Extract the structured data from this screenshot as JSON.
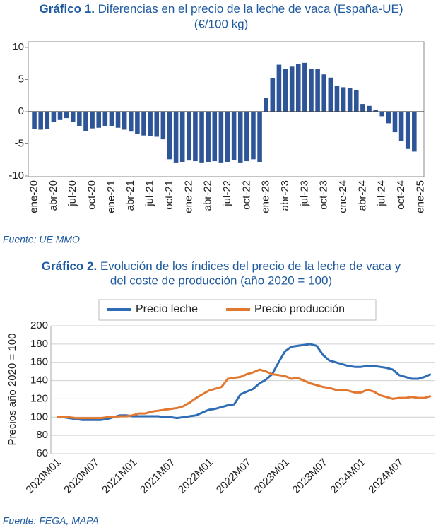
{
  "chart_data": [
    {
      "type": "bar",
      "title_prefix": "Gráfico 1.",
      "title": [
        "Diferencias en el precio de la leche de vaca (España-UE)",
        "(€/100 kg)"
      ],
      "source": "Fuente: UE MMO",
      "categories": [
        "ene-20",
        null,
        null,
        "abr-20",
        null,
        null,
        "jul-20",
        null,
        null,
        "oct-20",
        null,
        null,
        "ene-21",
        null,
        null,
        "abr-21",
        null,
        null,
        "jul-21",
        null,
        null,
        "oct-21",
        null,
        null,
        "ene-22",
        null,
        null,
        "abr-22",
        null,
        null,
        "jul-22",
        null,
        null,
        "oct-22",
        null,
        null,
        "ene-23",
        null,
        null,
        "abr-23",
        null,
        null,
        "jul-23",
        null,
        null,
        "oct-23",
        null,
        null,
        "ene-24",
        null,
        null,
        "abr-24",
        null,
        null,
        "jul-24",
        null,
        null,
        "oct-24",
        null,
        null,
        "ene-25"
      ],
      "values": [
        -2.7,
        -2.8,
        -2.7,
        -1.6,
        -1.3,
        -1.0,
        -1.6,
        -2.2,
        -3.0,
        -2.6,
        -2.5,
        -2.2,
        -2.2,
        -2.5,
        -2.8,
        -3.1,
        -3.5,
        -3.7,
        -3.8,
        -3.9,
        -4.3,
        -7.4,
        -7.9,
        -7.8,
        -7.6,
        -7.7,
        -7.9,
        -7.8,
        -7.7,
        -7.9,
        -7.8,
        -7.5,
        -7.9,
        -7.7,
        -7.4,
        -7.8,
        2.2,
        5.2,
        7.3,
        6.6,
        7.0,
        7.4,
        7.6,
        6.6,
        6.6,
        5.8,
        5.3,
        4.0,
        3.8,
        3.7,
        3.4,
        1.2,
        0.9,
        0.3,
        -0.7,
        -1.8,
        -3.2,
        -4.6,
        -5.8,
        -6.2,
        null
      ],
      "color": "#2e5597",
      "ylim": [
        -10,
        10
      ],
      "yticks": [
        -10,
        -5,
        0,
        5,
        10
      ],
      "grid": false
    },
    {
      "type": "line",
      "title_prefix": "Gráfico 2.",
      "title": [
        "Evolución de los índices del precio de la leche de vaca y",
        "del coste de producción (año 2020 = 100)"
      ],
      "source": "Fuente: FEGA, MAPA",
      "y_label": "Precios año 2020 = 100",
      "categories": [
        "2020M01",
        null,
        null,
        null,
        null,
        null,
        "2020M07",
        null,
        null,
        null,
        null,
        null,
        "2021M01",
        null,
        null,
        null,
        null,
        null,
        "2021M07",
        null,
        null,
        null,
        null,
        null,
        "2022M01",
        null,
        null,
        null,
        null,
        null,
        "2022M07",
        null,
        null,
        null,
        null,
        null,
        "2023M01",
        null,
        null,
        null,
        null,
        null,
        "2023M07",
        null,
        null,
        null,
        null,
        null,
        "2024M01",
        null,
        null,
        null,
        null,
        null,
        "2024M07",
        null,
        null,
        null,
        null,
        null
      ],
      "series": [
        {
          "name": "Precio leche",
          "color": "#2e6db5",
          "values": [
            100,
            100,
            99,
            98,
            97,
            97,
            97,
            97,
            98,
            100,
            102,
            102,
            101,
            101,
            101,
            101,
            101,
            100,
            100,
            99,
            100,
            101,
            102,
            105,
            108,
            109,
            111,
            113,
            114,
            125,
            128,
            131,
            137,
            141,
            147,
            160,
            172,
            177,
            178,
            179,
            180,
            178,
            168,
            162,
            160,
            158,
            156,
            155,
            155,
            156,
            156,
            155,
            154,
            152,
            146,
            144,
            142,
            142,
            144,
            147
          ]
        },
        {
          "name": "Precio producción",
          "color": "#e2782f",
          "values": [
            100,
            100,
            100,
            99,
            99,
            99,
            99,
            99,
            100,
            100,
            101,
            101,
            102,
            104,
            104,
            106,
            107,
            108,
            109,
            110,
            112,
            116,
            121,
            125,
            129,
            131,
            133,
            142,
            143,
            144,
            147,
            149,
            152,
            150,
            147,
            146,
            145,
            142,
            143,
            140,
            137,
            135,
            133,
            132,
            130,
            130,
            129,
            127,
            127,
            130,
            128,
            124,
            122,
            120,
            121,
            121,
            122,
            121,
            121,
            123
          ]
        }
      ],
      "ylim": [
        60,
        200
      ],
      "yticks": [
        60,
        80,
        100,
        120,
        140,
        160,
        180,
        200
      ],
      "grid": true,
      "legend": "top"
    }
  ]
}
